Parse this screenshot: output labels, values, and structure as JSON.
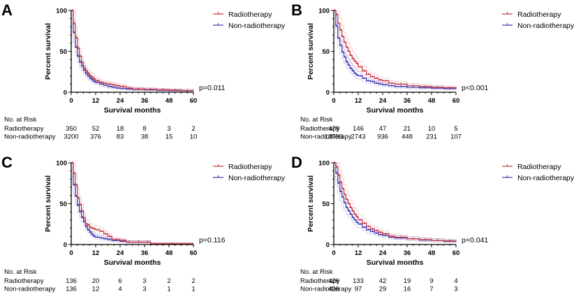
{
  "figure": {
    "colors": {
      "radiotherapy": "#c8323c",
      "non_radiotherapy": "#3a34b4",
      "axis": "#000000"
    }
  },
  "chart_data": [
    {
      "panel": "A",
      "type": "line",
      "subtype": "kaplan-meier",
      "xlabel": "Survival months",
      "ylabel": "Percent survival",
      "xlim": [
        0,
        60
      ],
      "ylim": [
        0,
        100
      ],
      "xticks": [
        0,
        12,
        24,
        36,
        48,
        60
      ],
      "yticks": [
        0,
        50,
        100
      ],
      "legend": [
        "Radiotherapy",
        "Non-radiotherapy"
      ],
      "legend_position": "top-right",
      "p_value": "p=0.011",
      "risk_table": {
        "title": "No. at Risk",
        "rows": [
          {
            "label": "Radiotherapy",
            "values": [
              350,
              52,
              18,
              8,
              3,
              2
            ]
          },
          {
            "label": "Non-radiotherapy",
            "values": [
              3200,
              376,
              83,
              38,
              15,
              10
            ]
          }
        ]
      },
      "series": [
        {
          "name": "Radiotherapy",
          "x": [
            0,
            1,
            2,
            3,
            4,
            5,
            6,
            7,
            8,
            9,
            10,
            11,
            12,
            14,
            16,
            18,
            20,
            22,
            24,
            27,
            30,
            36,
            42,
            48,
            54,
            60
          ],
          "y": [
            100,
            84,
            67,
            54,
            44,
            36,
            30,
            26,
            23,
            20,
            18,
            16,
            14,
            12,
            11,
            10,
            9,
            8,
            7,
            5,
            4,
            3.5,
            3,
            2.5,
            2,
            1.5
          ]
        },
        {
          "name": "Non-radiotherapy",
          "x": [
            0,
            1,
            2,
            3,
            4,
            5,
            6,
            7,
            8,
            9,
            10,
            11,
            12,
            14,
            16,
            18,
            20,
            22,
            24,
            27,
            30,
            36,
            42,
            48,
            54,
            60
          ],
          "y": [
            100,
            73,
            55,
            44,
            37,
            32,
            27,
            23,
            20,
            17,
            15,
            13,
            12,
            10,
            8.5,
            7,
            6,
            5,
            4.5,
            4,
            3.5,
            3,
            2.5,
            2.2,
            2,
            1.5
          ]
        }
      ]
    },
    {
      "panel": "B",
      "type": "line",
      "subtype": "kaplan-meier",
      "xlabel": "Survival months",
      "ylabel": "Percent survival",
      "xlim": [
        0,
        60
      ],
      "ylim": [
        0,
        100
      ],
      "xticks": [
        0,
        12,
        24,
        36,
        48,
        60
      ],
      "yticks": [
        0,
        50,
        100
      ],
      "legend": [
        "Radiotherapy",
        "Non-radiotherapy"
      ],
      "legend_position": "top-right",
      "p_value": "p<0.001",
      "risk_table": {
        "title": "No. at Risk",
        "rows": [
          {
            "label": "Radiotherapy",
            "values": [
              479,
              146,
              47,
              21,
              10,
              5
            ]
          },
          {
            "label": "Non-radiotherapy",
            "values": [
              13793,
              2743,
              936,
              448,
              231,
              107
            ]
          }
        ]
      },
      "series": [
        {
          "name": "Radiotherapy",
          "x": [
            0,
            1,
            2,
            3,
            4,
            5,
            6,
            7,
            8,
            9,
            10,
            11,
            12,
            14,
            16,
            18,
            20,
            22,
            24,
            27,
            30,
            36,
            42,
            48,
            54,
            60
          ],
          "y": [
            100,
            95,
            84,
            76,
            68,
            61,
            55,
            50,
            45,
            41,
            38,
            35,
            31,
            26,
            22,
            19,
            17,
            15,
            14,
            11,
            10,
            8,
            7,
            6,
            5.5,
            5
          ]
        },
        {
          "name": "Non-radiotherapy",
          "x": [
            0,
            1,
            2,
            3,
            4,
            5,
            6,
            7,
            8,
            9,
            10,
            11,
            12,
            14,
            16,
            18,
            20,
            22,
            24,
            27,
            30,
            36,
            42,
            48,
            54,
            60
          ],
          "y": [
            100,
            81,
            66,
            57,
            49,
            43,
            37,
            33,
            29,
            26,
            23,
            21,
            20,
            17,
            14,
            13,
            11,
            10,
            9,
            8,
            7,
            6,
            5.5,
            5,
            4.5,
            4
          ]
        }
      ]
    },
    {
      "panel": "C",
      "type": "line",
      "subtype": "kaplan-meier",
      "xlabel": "Survival months",
      "ylabel": "Percent survival",
      "xlim": [
        0,
        60
      ],
      "ylim": [
        0,
        100
      ],
      "xticks": [
        0,
        12,
        24,
        36,
        48,
        60
      ],
      "yticks": [
        0,
        50,
        100
      ],
      "legend": [
        "Radiotherapy",
        "Non-radiotherapy"
      ],
      "legend_position": "top-right",
      "p_value": "p=0.116",
      "risk_table": {
        "title": "No. at Risk",
        "rows": [
          {
            "label": "Radiotherapy",
            "values": [
              136,
              20,
              6,
              3,
              2,
              2
            ]
          },
          {
            "label": "Non-radiotherapy",
            "values": [
              136,
              12,
              4,
              3,
              1,
              1
            ]
          }
        ]
      },
      "series": [
        {
          "name": "Radiotherapy",
          "x": [
            0,
            1,
            2,
            3,
            4,
            5,
            6,
            7,
            8,
            9,
            10,
            11,
            12,
            14,
            16,
            18,
            20,
            24,
            27,
            30,
            36,
            39,
            60
          ],
          "y": [
            100,
            87,
            73,
            57,
            49,
            41,
            32,
            25,
            24,
            21,
            20,
            19,
            18,
            16,
            13,
            10,
            6,
            5,
            3,
            3,
            3,
            1,
            1
          ]
        },
        {
          "name": "Non-radiotherapy",
          "x": [
            0,
            1,
            2,
            3,
            4,
            5,
            6,
            7,
            8,
            9,
            10,
            11,
            12,
            14,
            16,
            18,
            20,
            24,
            27,
            30,
            36,
            39,
            60
          ],
          "y": [
            100,
            73,
            59,
            48,
            40,
            33,
            28,
            22,
            18,
            15,
            12,
            10,
            9,
            8,
            7,
            6,
            5,
            4,
            3,
            3,
            3,
            0.5,
            0.5
          ]
        }
      ]
    },
    {
      "panel": "D",
      "type": "line",
      "subtype": "kaplan-meier",
      "xlabel": "Survival months",
      "ylabel": "Percent survival",
      "xlim": [
        0,
        60
      ],
      "ylim": [
        0,
        100
      ],
      "xticks": [
        0,
        12,
        24,
        36,
        48,
        60
      ],
      "yticks": [
        0,
        50,
        100
      ],
      "legend": [
        "Radiotherapy",
        "Non-radiotherapy"
      ],
      "legend_position": "top-right",
      "p_value": "p=0.041",
      "risk_table": {
        "title": "No. at Risk",
        "rows": [
          {
            "label": "Radiotherapy",
            "values": [
              426,
              133,
              42,
              19,
              9,
              4
            ]
          },
          {
            "label": "Non-radiotherapy",
            "values": [
              426,
              97,
              29,
              16,
              7,
              3
            ]
          }
        ]
      },
      "series": [
        {
          "name": "Radiotherapy",
          "x": [
            0,
            1,
            2,
            3,
            4,
            5,
            6,
            7,
            8,
            9,
            10,
            11,
            12,
            14,
            16,
            18,
            20,
            22,
            24,
            27,
            30,
            36,
            42,
            48,
            54,
            60
          ],
          "y": [
            100,
            95,
            85,
            76,
            68,
            61,
            55,
            50,
            45,
            41,
            37,
            34,
            30,
            26,
            22,
            19,
            17,
            15,
            13,
            10,
            9,
            7,
            6,
            5,
            4.5,
            4
          ]
        },
        {
          "name": "Non-radiotherapy",
          "x": [
            0,
            1,
            2,
            3,
            4,
            5,
            6,
            7,
            8,
            9,
            10,
            11,
            12,
            14,
            16,
            18,
            20,
            22,
            24,
            27,
            30,
            36,
            42,
            48,
            54,
            60
          ],
          "y": [
            100,
            87,
            75,
            65,
            58,
            51,
            45,
            41,
            37,
            33,
            30,
            27,
            25,
            21,
            18,
            16,
            14,
            12,
            11,
            9,
            8,
            7,
            5.5,
            5,
            4,
            3.5
          ]
        }
      ]
    }
  ]
}
